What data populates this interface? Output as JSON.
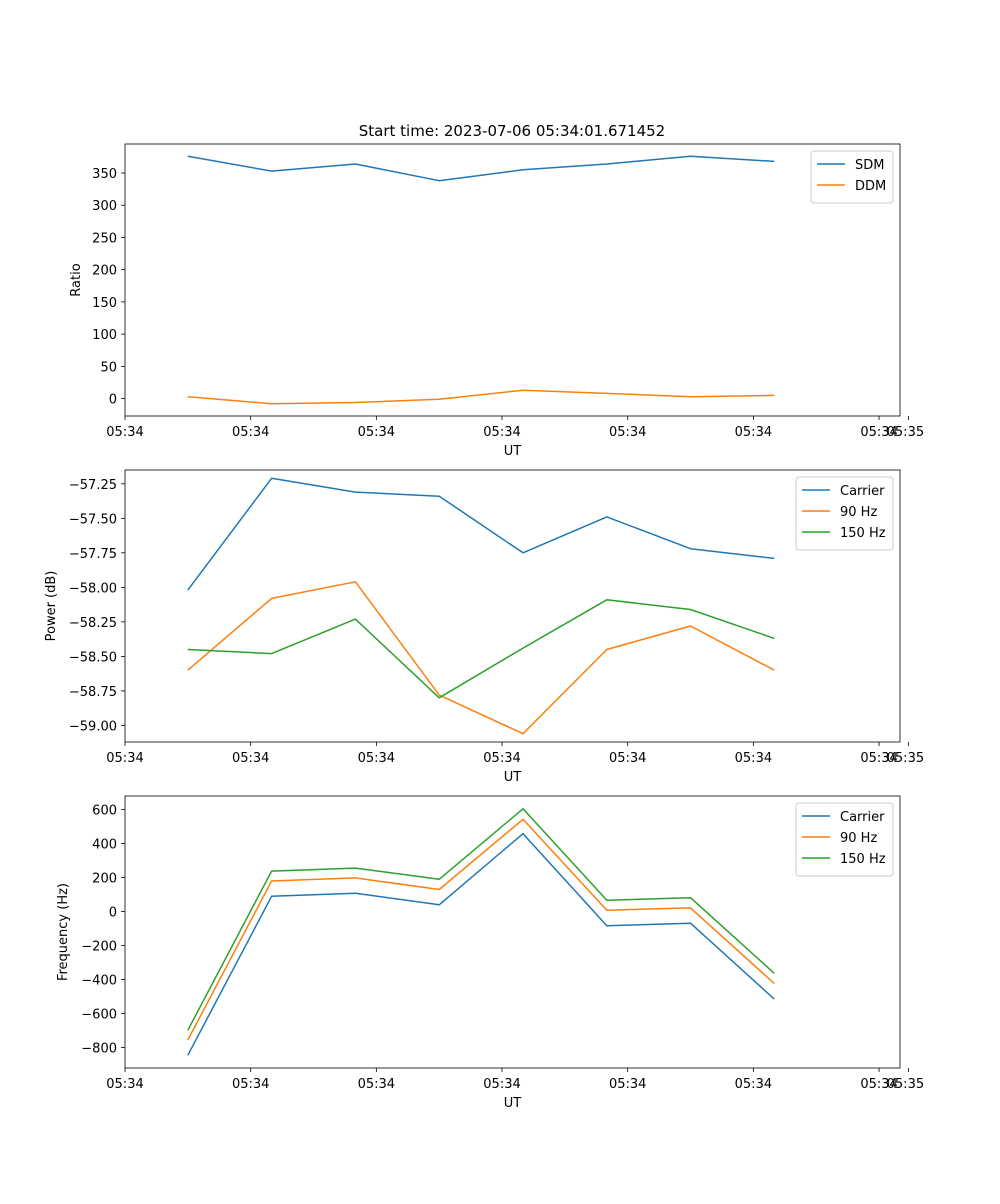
{
  "figure": {
    "title": "Start time: 2023-07-06 05:34:01.671452"
  },
  "chart_data": [
    {
      "type": "line",
      "title": "Start time: 2023-07-06 05:34:01.671452",
      "xlabel": "UT",
      "ylabel": "Ratio",
      "xlim": [
        -0.75,
        8.5
      ],
      "ylim": [
        -27,
        395
      ],
      "x": [
        0,
        1,
        2,
        3,
        4,
        5,
        6,
        7
      ],
      "xticks": [
        -0.75,
        0.75,
        2.25,
        3.75,
        5.25,
        6.75,
        8.25
      ],
      "xtick_labels": [
        "05:34",
        "05:34",
        "05:34",
        "05:34",
        "05:34",
        "05:34",
        "05:34"
      ],
      "yticks": [
        0,
        50,
        100,
        150,
        200,
        250,
        300,
        350
      ],
      "ytick_labels": [
        "0",
        "50",
        "100",
        "150",
        "200",
        "250",
        "300",
        "350"
      ],
      "last_xtick": {
        "value": 8.6,
        "label": "05:35"
      },
      "legend": "top-right",
      "series": [
        {
          "name": "SDM",
          "color": "#1f77b4",
          "values": [
            376,
            353,
            364,
            338,
            355,
            364,
            376,
            368
          ]
        },
        {
          "name": "DDM",
          "color": "#ff7f0e",
          "values": [
            3,
            -8,
            -6,
            -1,
            13,
            8,
            3,
            5
          ]
        }
      ]
    },
    {
      "type": "line",
      "title": "",
      "xlabel": "UT",
      "ylabel": "Power (dB)",
      "xlim": [
        -0.75,
        8.5
      ],
      "ylim": [
        -59.12,
        -57.15
      ],
      "x": [
        0,
        1,
        2,
        3,
        4,
        5,
        6,
        7
      ],
      "xticks": [
        -0.75,
        0.75,
        2.25,
        3.75,
        5.25,
        6.75,
        8.25
      ],
      "xtick_labels": [
        "05:34",
        "05:34",
        "05:34",
        "05:34",
        "05:34",
        "05:34",
        "05:34"
      ],
      "yticks": [
        -59.0,
        -58.75,
        -58.5,
        -58.25,
        -58.0,
        -57.75,
        -57.5,
        -57.25
      ],
      "ytick_labels": [
        "−59.00",
        "−58.75",
        "−58.50",
        "−58.25",
        "−58.00",
        "−57.75",
        "−57.50",
        "−57.25"
      ],
      "last_xtick": {
        "value": 8.6,
        "label": "05:35"
      },
      "legend": "top-right",
      "series": [
        {
          "name": "Carrier",
          "color": "#1f77b4",
          "values": [
            -58.02,
            -57.21,
            -57.31,
            -57.34,
            -57.75,
            -57.49,
            -57.72,
            -57.79
          ]
        },
        {
          "name": "90 Hz",
          "color": "#ff7f0e",
          "values": [
            -58.6,
            -58.08,
            -57.96,
            -58.78,
            -59.06,
            -58.45,
            -58.28,
            -58.6
          ]
        },
        {
          "name": "150 Hz",
          "color": "#2ca02c",
          "values": [
            -58.45,
            -58.48,
            -58.23,
            -58.8,
            -58.44,
            -58.09,
            -58.16,
            -58.37
          ]
        }
      ]
    },
    {
      "type": "line",
      "title": "",
      "xlabel": "UT",
      "ylabel": "Frequency (Hz)",
      "xlim": [
        -0.75,
        8.5
      ],
      "ylim": [
        -920,
        680
      ],
      "x": [
        0,
        1,
        2,
        3,
        4,
        5,
        6,
        7
      ],
      "xticks": [
        -0.75,
        0.75,
        2.25,
        3.75,
        5.25,
        6.75,
        8.25
      ],
      "xtick_labels": [
        "05:34",
        "05:34",
        "05:34",
        "05:34",
        "05:34",
        "05:34",
        "05:34"
      ],
      "yticks": [
        -800,
        -600,
        -400,
        -200,
        0,
        200,
        400,
        600
      ],
      "ytick_labels": [
        "−800",
        "−600",
        "−400",
        "−200",
        "0",
        "200",
        "400",
        "600"
      ],
      "last_xtick": {
        "value": 8.6,
        "label": "05:35"
      },
      "legend": "top-right",
      "series": [
        {
          "name": "Carrier",
          "color": "#1f77b4",
          "values": [
            -845,
            90,
            108,
            40,
            458,
            -83,
            -68,
            -515
          ]
        },
        {
          "name": "90 Hz",
          "color": "#ff7f0e",
          "values": [
            -755,
            180,
            198,
            130,
            543,
            8,
            22,
            -423
          ]
        },
        {
          "name": "150 Hz",
          "color": "#2ca02c",
          "values": [
            -698,
            238,
            256,
            190,
            605,
            67,
            82,
            -363
          ]
        }
      ]
    }
  ]
}
